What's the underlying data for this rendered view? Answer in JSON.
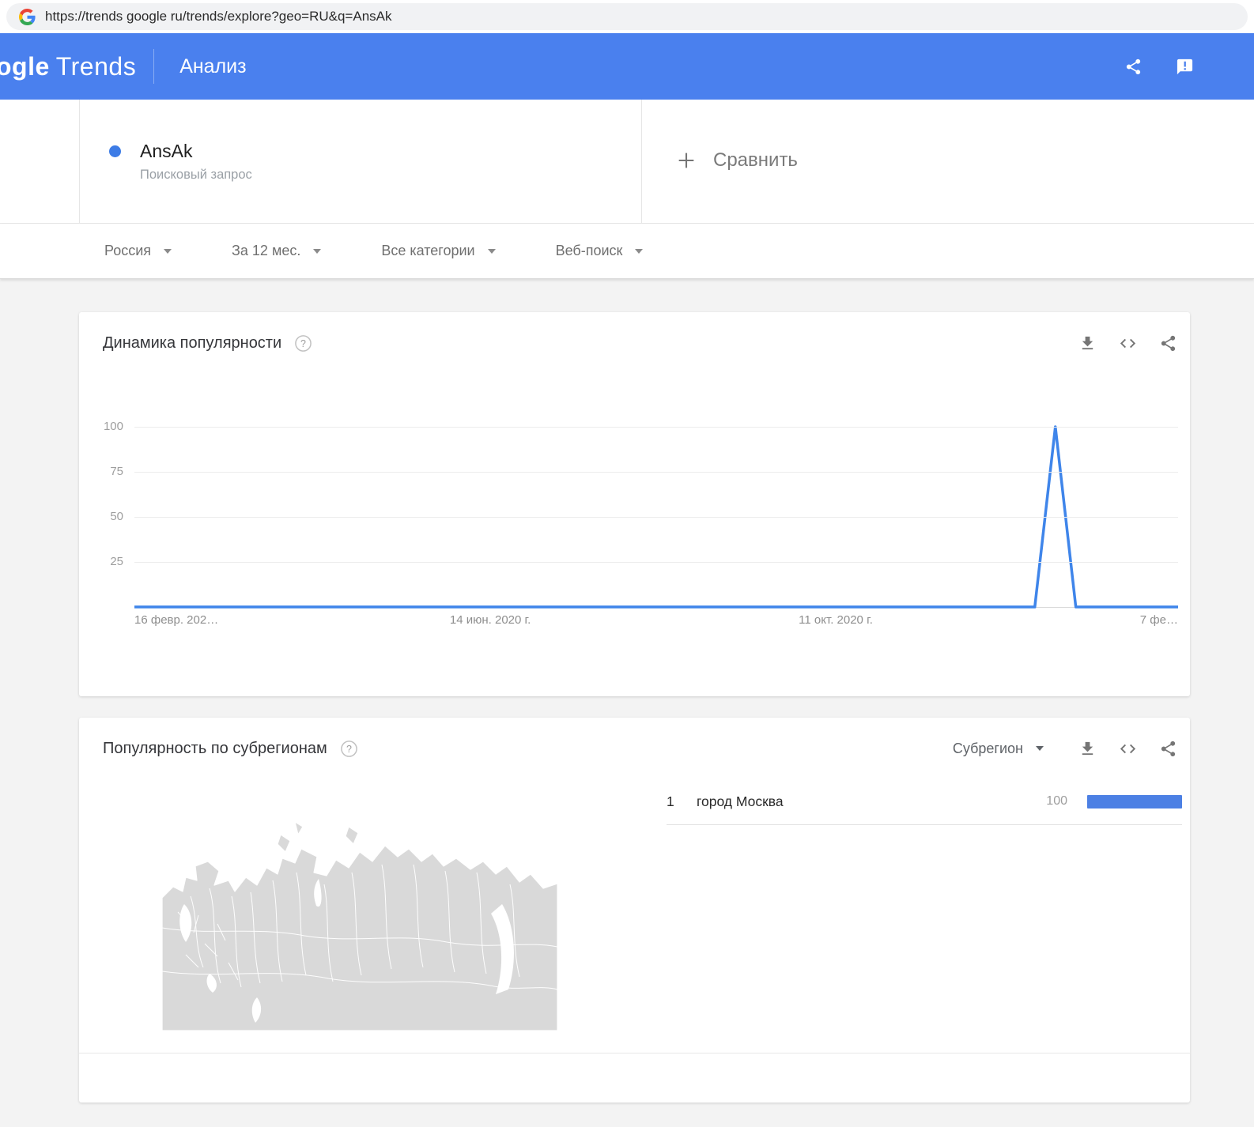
{
  "browser": {
    "url": "https://trends google ru/trends/explore?geo=RU&q=AnsAk"
  },
  "header": {
    "logo_part1": "ogle",
    "logo_part2": "Trends",
    "nav_label": "Анализ",
    "background_color": "#4a80ee"
  },
  "term": {
    "query": "AnsAk",
    "kind_label": "Поисковый запрос",
    "dot_color": "#3d7ce6"
  },
  "compare": {
    "label": "Сравнить"
  },
  "filters": {
    "region": "Россия",
    "period": "За 12 мес.",
    "category": "Все категории",
    "search_type": "Веб-поиск"
  },
  "interest_over_time": {
    "title": "Динамика популярности"
  },
  "chart_data": {
    "type": "line",
    "title": "Динамика популярности",
    "xlabel": "",
    "ylabel": "",
    "ylim": [
      0,
      100
    ],
    "yticks": [
      100,
      75,
      50,
      25
    ],
    "grid": "horizontal",
    "legend": "none",
    "x_tick_labels": [
      "16 февр. 202…",
      "14 июн. 2020 г.",
      "11 окт. 2020 г.",
      "7 фе…"
    ],
    "x_tick_positions": [
      0,
      0.341,
      0.672,
      1
    ],
    "series": [
      {
        "name": "AnsAk",
        "color": "#3f85ea",
        "values": [
          0,
          0,
          0,
          0,
          0,
          0,
          0,
          0,
          0,
          0,
          0,
          0,
          0,
          0,
          0,
          0,
          0,
          0,
          0,
          0,
          0,
          0,
          0,
          0,
          0,
          0,
          0,
          0,
          0,
          0,
          0,
          0,
          0,
          0,
          0,
          0,
          0,
          0,
          0,
          0,
          0,
          0,
          0,
          0,
          0,
          100,
          0,
          0,
          0,
          0,
          0,
          0
        ]
      }
    ]
  },
  "subregions": {
    "title": "Популярность по субрегионам",
    "sort_dropdown_value": "Субрегион",
    "bar_color": "#4c80e4",
    "rows": [
      {
        "rank": "1",
        "name": "город Москва",
        "value": "100"
      }
    ]
  }
}
